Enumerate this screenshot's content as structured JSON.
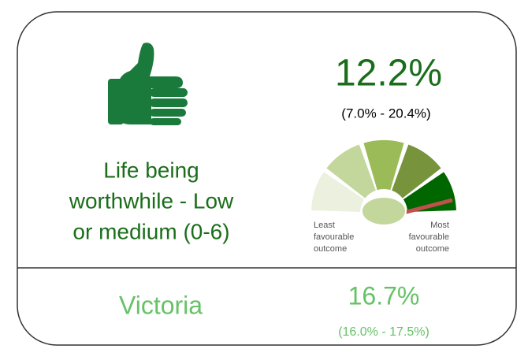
{
  "card": {
    "value": "12.2%",
    "interval": "(7.0% - 20.4%)",
    "label_lines": [
      "Life being",
      "worthwhile - Low",
      "or medium (0-6)"
    ],
    "gauge": {
      "least": [
        "Least",
        "favourable",
        "outcome"
      ],
      "most": [
        "Most",
        "favourable",
        "outcome"
      ]
    },
    "comparison": {
      "region": "Victoria",
      "value": "16.7%",
      "interval": "(16.0% - 17.5%)"
    }
  }
}
